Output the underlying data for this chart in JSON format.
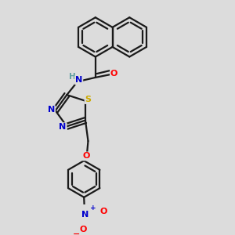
{
  "background_color": "#dcdcdc",
  "bond_color": "#1a1a1a",
  "atom_colors": {
    "N": "#0000cd",
    "O": "#ff0000",
    "S": "#ccaa00",
    "C": "#1a1a1a",
    "H": "#5f9ea0"
  },
  "figsize": [
    3.0,
    3.0
  ],
  "dpi": 100
}
